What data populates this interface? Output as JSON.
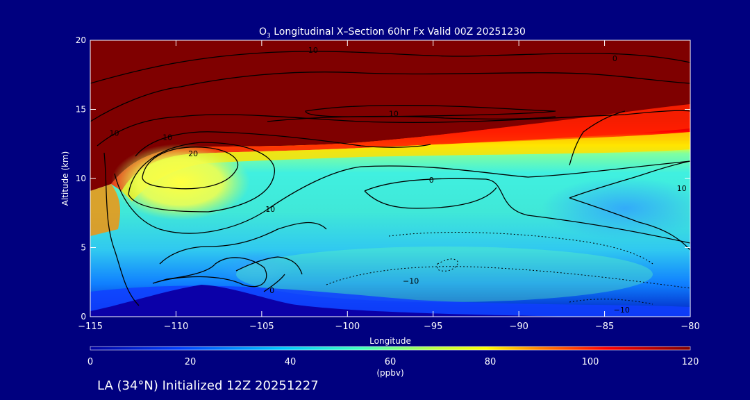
{
  "colors": {
    "background": "#00007f",
    "text": "#ffffff",
    "contour": "#000000",
    "terrain": "#0b00a8"
  },
  "chart_data": {
    "type": "heatmap",
    "title_main": "O",
    "title_sub": "3",
    "title_rest": " Longitudinal X–Section 60hr  Fx Valid 00Z 20251230",
    "xlabel": "Longitude",
    "ylabel": "Altitude (km)",
    "xlim": [
      -115,
      -80
    ],
    "ylim": [
      0,
      20
    ],
    "x_ticks": [
      -115,
      -110,
      -105,
      -100,
      -95,
      -90,
      -85,
      -80
    ],
    "x_tick_labels": [
      "−115",
      "−110",
      "−105",
      "−100",
      "−95",
      "−90",
      "−85",
      "−80"
    ],
    "y_ticks": [
      0,
      5,
      10,
      15,
      20
    ],
    "y_tick_labels": [
      "0",
      "5",
      "10",
      "15",
      "20"
    ],
    "contour_labels": [
      {
        "text": "10",
        "x": -113.6,
        "y": 13.3
      },
      {
        "text": "10",
        "x": -110.5,
        "y": 13.0
      },
      {
        "text": "20",
        "x": -109.0,
        "y": 11.8
      },
      {
        "text": "10",
        "x": -104.5,
        "y": 7.8
      },
      {
        "text": "0",
        "x": -104.4,
        "y": 1.9
      },
      {
        "text": "0",
        "x": -95.1,
        "y": 9.9
      },
      {
        "text": "10",
        "x": -97.3,
        "y": 14.7
      },
      {
        "text": "10",
        "x": -102.0,
        "y": 19.3
      },
      {
        "text": "0",
        "x": -84.4,
        "y": 18.7
      },
      {
        "text": "−10",
        "x": -96.3,
        "y": 2.6
      },
      {
        "text": "−10",
        "x": -84.0,
        "y": 0.5
      },
      {
        "text": "10",
        "x": -80.5,
        "y": 9.3
      }
    ],
    "colorbar": {
      "label": "(ppbv)",
      "range": [
        0,
        120
      ],
      "tick_values": [
        0,
        20,
        40,
        60,
        80,
        100,
        120
      ],
      "tick_labels": [
        "0",
        "20",
        "40",
        "60",
        "80",
        "100",
        "120"
      ],
      "colors": [
        "#0000a0",
        "#0040ff",
        "#00c8ff",
        "#40ffc0",
        "#c0ff40",
        "#ffff00",
        "#ff8000",
        "#ff0000",
        "#7f0000"
      ]
    },
    "footer": "LA (34°N) Initialized 12Z 20251227"
  }
}
